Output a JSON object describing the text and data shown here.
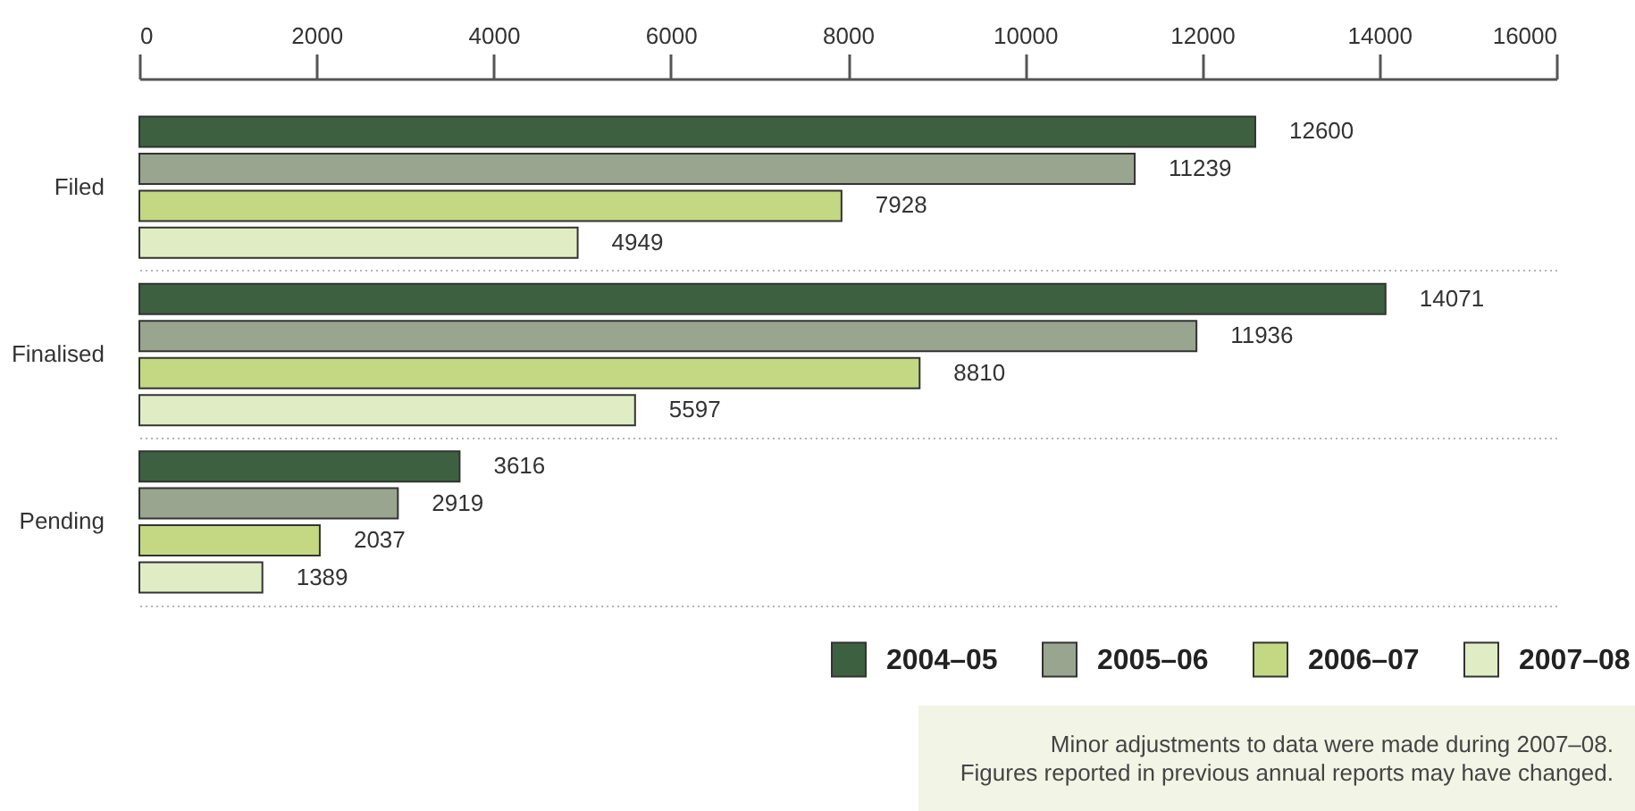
{
  "chart_data": {
    "type": "bar",
    "orientation": "horizontal",
    "categories": [
      "Filed",
      "Finalised",
      "Pending"
    ],
    "series": [
      {
        "name": "2004–05",
        "color": "#3d6140",
        "values": [
          12600,
          14071,
          3616
        ]
      },
      {
        "name": "2005–06",
        "color": "#99a58f",
        "values": [
          11239,
          11936,
          2919
        ]
      },
      {
        "name": "2006–07",
        "color": "#c4d883",
        "values": [
          7928,
          8810,
          2037
        ]
      },
      {
        "name": "2007–08",
        "color": "#e0ecc4",
        "values": [
          4949,
          5597,
          1389
        ]
      }
    ],
    "xlim": [
      0,
      16000
    ],
    "xticks": [
      0,
      2000,
      4000,
      6000,
      8000,
      10000,
      12000,
      14000,
      16000
    ],
    "data_labels": true,
    "grid": "y",
    "legend": "bottom right",
    "annotations": [
      "Minor adjustments to data were made during 2007–08.\nFigures reported in previous annual reports may have changed."
    ]
  }
}
